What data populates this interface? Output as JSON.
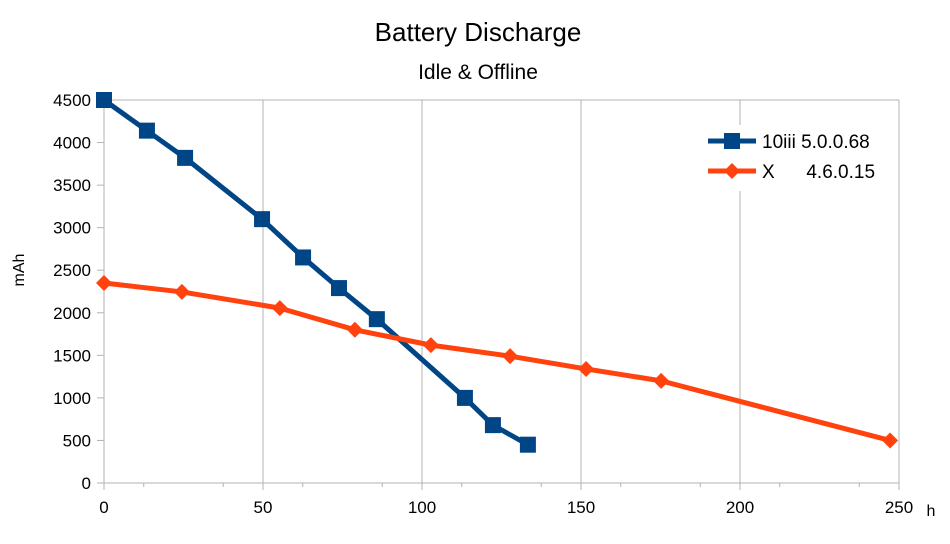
{
  "chart_data": {
    "type": "line",
    "title": "Battery Discharge",
    "subtitle": "Idle & Offline",
    "xlabel": "h",
    "ylabel": "mAh",
    "xlim": [
      0,
      250
    ],
    "ylim": [
      0,
      4500
    ],
    "xticks": [
      0,
      50,
      100,
      150,
      200,
      250
    ],
    "yticks": [
      0,
      500,
      1000,
      1500,
      2000,
      2500,
      3000,
      3500,
      4000,
      4500
    ],
    "grid": "vertical",
    "legend_position": "top-right",
    "series": [
      {
        "name": "10iii 5.0.0.68",
        "color": "#004586",
        "marker": "square",
        "x": [
          0,
          13.5,
          25.5,
          49.7,
          62.6,
          73.9,
          85.8,
          113.5,
          122.3,
          133.3
        ],
        "y": [
          4500,
          4140,
          3820,
          3100,
          2650,
          2290,
          1925,
          1000,
          680,
          450
        ]
      },
      {
        "name": "X      4.6.0.15",
        "color": "#ff420e",
        "marker": "diamond",
        "x": [
          0,
          24.5,
          55.3,
          78.9,
          102.8,
          127.7,
          151.6,
          175.2,
          247.2
        ],
        "y": [
          2350,
          2245,
          2055,
          1800,
          1620,
          1490,
          1340,
          1200,
          500
        ]
      }
    ]
  }
}
